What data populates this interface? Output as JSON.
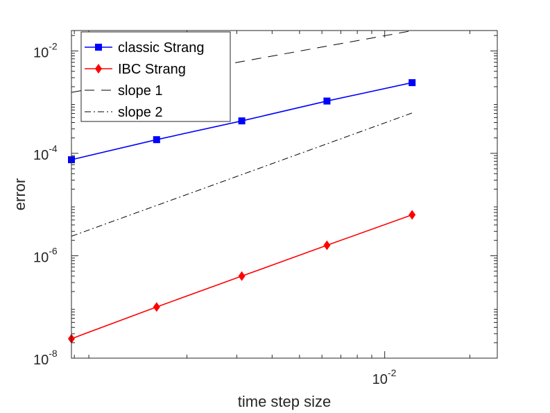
{
  "chart_data": {
    "type": "line",
    "scale": {
      "x": "log",
      "y": "log"
    },
    "xlabel": "time step size",
    "ylabel": "error",
    "xlim": [
      0.00078125,
      0.025
    ],
    "ylim": [
      1e-08,
      0.025
    ],
    "x_ticks": [
      {
        "value": 0.01,
        "base": "10",
        "exp": "-2"
      }
    ],
    "y_ticks": [
      {
        "value": 1e-08,
        "base": "10",
        "exp": "-8"
      },
      {
        "value": 1e-06,
        "base": "10",
        "exp": "-6"
      },
      {
        "value": 0.0001,
        "base": "10",
        "exp": "-4"
      },
      {
        "value": 0.01,
        "base": "10",
        "exp": "-2"
      }
    ],
    "series": [
      {
        "name": "classic Strang",
        "color": "#0000ff",
        "marker": "square",
        "line": "solid",
        "x": [
          0.00078125,
          0.0015625,
          0.003125,
          0.00625,
          0.0125
        ],
        "y": [
          7.5e-05,
          0.000185,
          0.00043,
          0.00105,
          0.0024
        ]
      },
      {
        "name": "IBC Strang",
        "color": "#ff0000",
        "marker": "diamond",
        "line": "solid",
        "x": [
          0.00078125,
          0.0015625,
          0.003125,
          0.00625,
          0.0125
        ],
        "y": [
          2.4e-08,
          1e-07,
          4e-07,
          1.6e-06,
          6.3e-06
        ]
      },
      {
        "name": "slope 1",
        "color": "#000000",
        "marker": "none",
        "line": "dash",
        "x": [
          0.00078125,
          0.0125
        ],
        "y": [
          0.00155,
          0.0248
        ]
      },
      {
        "name": "slope 2",
        "color": "#000000",
        "marker": "none",
        "line": "dashdot",
        "x": [
          0.00078125,
          0.0125
        ],
        "y": [
          2.4e-06,
          0.000614
        ]
      }
    ],
    "legend": {
      "position": "top-left"
    }
  }
}
